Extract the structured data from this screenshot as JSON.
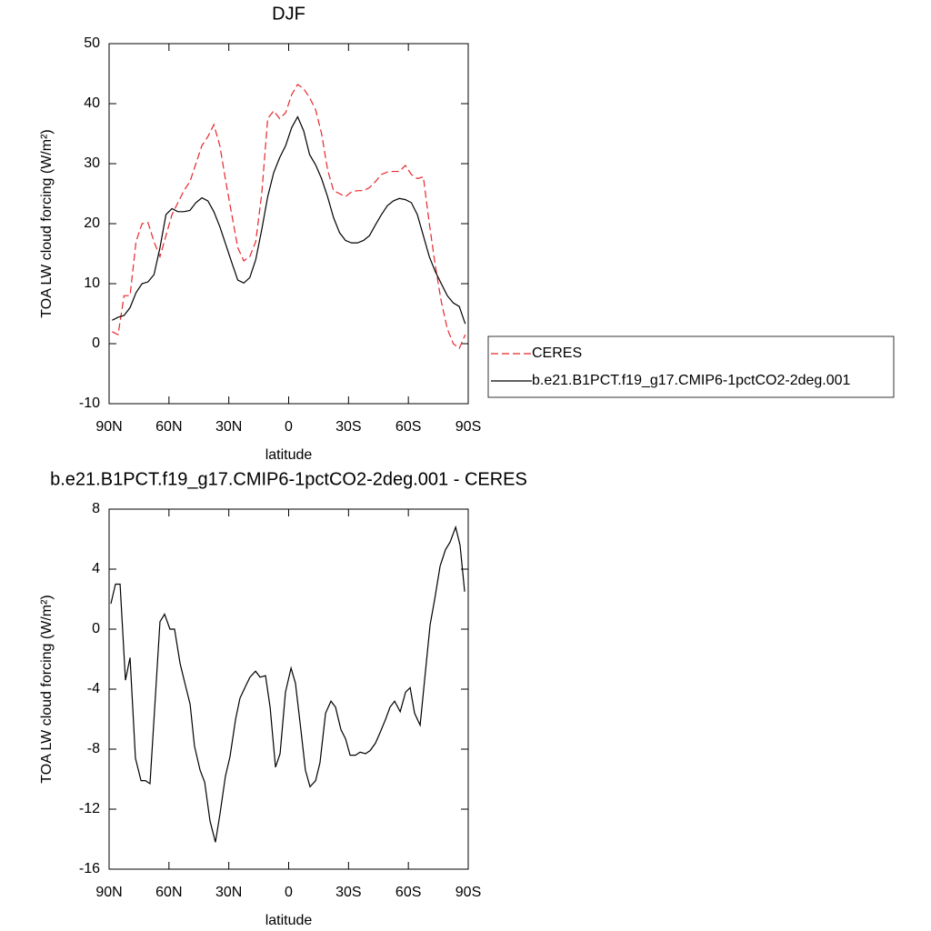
{
  "chart_data": [
    {
      "type": "line",
      "title": "DJF",
      "xlabel": "latitude",
      "ylabel": "TOA LW cloud forcing (W/m²)",
      "xlim": [
        90,
        -90
      ],
      "xticks": [
        {
          "value": 90,
          "label": "90N"
        },
        {
          "value": 60,
          "label": "60N"
        },
        {
          "value": 30,
          "label": "30N"
        },
        0,
        {
          "value": -30,
          "label": "30S"
        },
        {
          "value": -60,
          "label": "60S"
        },
        {
          "value": -90,
          "label": "90S"
        }
      ],
      "ylim": [
        -10,
        50
      ],
      "yticks": [
        -10,
        0,
        10,
        20,
        30,
        40,
        50
      ],
      "legend": "right",
      "x": [
        88.5,
        85.5,
        82.5,
        79.5,
        76.5,
        73.5,
        70.5,
        67.5,
        64.5,
        61.5,
        58.5,
        55.5,
        52.5,
        49.5,
        46.5,
        43.5,
        40.5,
        37.5,
        34.5,
        31.5,
        28.5,
        25.5,
        22.5,
        19.5,
        16.5,
        13.5,
        10.5,
        7.5,
        4.5,
        1.5,
        -1.5,
        -4.5,
        -7.5,
        -10.5,
        -13.5,
        -16.5,
        -19.5,
        -22.5,
        -25.5,
        -28.5,
        -31.5,
        -34.5,
        -37.5,
        -40.5,
        -43.5,
        -46.5,
        -49.5,
        -52.5,
        -55.5,
        -58.5,
        -61.5,
        -64.5,
        -67.5,
        -70.5,
        -73.5,
        -76.5,
        -79.5,
        -82.5,
        -85.5,
        -88.5
      ],
      "series": [
        {
          "name": "CERES",
          "color": "#e8262b",
          "linestyle": "dashed",
          "values": [
            2,
            1.5,
            8,
            8,
            17,
            20,
            20.2,
            17,
            14.5,
            18,
            21.5,
            23.5,
            25.5,
            27,
            30,
            33,
            34.5,
            36.5,
            33,
            27,
            21.5,
            16,
            13.8,
            14.5,
            17,
            25,
            37.5,
            38.8,
            37.5,
            38.5,
            41.5,
            43.2,
            42.5,
            41,
            39,
            35,
            29,
            25.5,
            25,
            24.5,
            25.3,
            25.5,
            25.5,
            26,
            27,
            28.2,
            28.6,
            28.7,
            28.7,
            29.7,
            28.2,
            27.5,
            27.8,
            20,
            13,
            7,
            2.5,
            0,
            -0.8,
            1.5
          ]
        },
        {
          "name": "b.e21.B1PCT.f19_g17.CMIP6-1pctCO2-2deg.001",
          "color": "#000000",
          "linestyle": "solid",
          "values": [
            3.9,
            4.4,
            4.7,
            6,
            8.5,
            10,
            10.3,
            11.5,
            16,
            21.5,
            22.5,
            22,
            22,
            22.2,
            23.5,
            24.3,
            23.8,
            22,
            19.5,
            16.5,
            13.5,
            10.6,
            10.1,
            11,
            14,
            19,
            24.5,
            28.5,
            31,
            33,
            36,
            37.8,
            35.5,
            31.5,
            29.8,
            27.5,
            24.5,
            21,
            18.5,
            17.2,
            16.8,
            16.8,
            17.2,
            18,
            19.8,
            21.5,
            23,
            23.8,
            24.2,
            24,
            23.5,
            21.5,
            18,
            14.5,
            12,
            10,
            8,
            6.8,
            6.2,
            3.3
          ]
        }
      ]
    },
    {
      "type": "line",
      "title": "b.e21.B1PCT.f19_g17.CMIP6-1pctCO2-2deg.001 - CERES",
      "xlabel": "latitude",
      "ylabel": "TOA LW cloud forcing (W/m²)",
      "xlim": [
        90,
        -90
      ],
      "xticks": [
        {
          "value": 90,
          "label": "90N"
        },
        {
          "value": 60,
          "label": "60N"
        },
        {
          "value": 30,
          "label": "30N"
        },
        0,
        {
          "value": -30,
          "label": "30S"
        },
        {
          "value": -60,
          "label": "60S"
        },
        {
          "value": -90,
          "label": "90S"
        }
      ],
      "ylim": [
        -16,
        8
      ],
      "yticks": [
        -16,
        -12,
        -8,
        -4,
        0,
        4,
        8
      ],
      "color": "#000000",
      "x": [
        89.1,
        86.8,
        84.5,
        81.8,
        79.5,
        76.8,
        74.0,
        71.8,
        69.5,
        66.8,
        64.5,
        62.2,
        59.5,
        57.2,
        54.4,
        52.2,
        49.4,
        47.2,
        44.4,
        42.1,
        39.4,
        36.7,
        34.4,
        31.7,
        29.4,
        26.6,
        24.4,
        21.6,
        19.4,
        16.6,
        14.3,
        11.6,
        9.3,
        6.6,
        4.3,
        1.6,
        -1.2,
        -3.4,
        -6.2,
        -8.4,
        -10.7,
        -13.5,
        -15.7,
        -18.5,
        -21.2,
        -23.5,
        -26.2,
        -28.5,
        -30.8,
        -33.5,
        -35.8,
        -38.5,
        -40.8,
        -43.5,
        -45.8,
        -48.6,
        -50.8,
        -53.1,
        -55.9,
        -58.6,
        -60.9,
        -63.1,
        -65.9,
        -68.2,
        -70.9,
        -73.2,
        -75.9,
        -78.6,
        -80.9,
        -83.7,
        -85.9,
        -88.2
      ],
      "values": [
        1.7,
        3,
        3,
        -3.4,
        -1.9,
        -8.6,
        -10.1,
        -10.1,
        -10.3,
        -4.5,
        0.5,
        1,
        0,
        0,
        -2.3,
        -3.5,
        -5,
        -7.8,
        -9.4,
        -10.2,
        -12.8,
        -14.2,
        -12.3,
        -9.8,
        -8.5,
        -6,
        -4.6,
        -3.8,
        -3.2,
        -2.8,
        -3.2,
        -3.1,
        -5.2,
        -9.2,
        -8.3,
        -4.2,
        -2.6,
        -3.6,
        -6.8,
        -9.4,
        -10.5,
        -10.1,
        -8.9,
        -5.6,
        -4.8,
        -5.2,
        -6.7,
        -7.3,
        -8.4,
        -8.4,
        -8.2,
        -8.3,
        -8.1,
        -7.6,
        -6.9,
        -6,
        -5.2,
        -4.8,
        -5.5,
        -4.2,
        -3.9,
        -5.6,
        -6.4,
        -3.3,
        0.3,
        2,
        4.2,
        5.3,
        5.8,
        6.8,
        5.6,
        2.5
      ]
    }
  ]
}
